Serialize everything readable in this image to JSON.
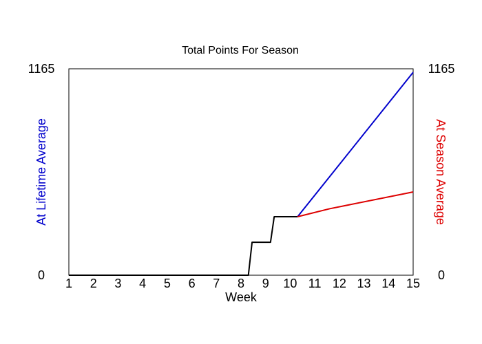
{
  "chart_data": {
    "type": "line",
    "title": "Total Points For Season",
    "xlabel": "Week",
    "ylabel_left": "At Lifetime Average",
    "ylabel_right": "At Season Average",
    "xlim": [
      1,
      15
    ],
    "ylim": [
      0,
      1165
    ],
    "x_ticks": [
      "1",
      "2",
      "3",
      "4",
      "5",
      "6",
      "7",
      "8",
      "9",
      "10",
      "11",
      "12",
      "13",
      "14",
      "15"
    ],
    "y_tick_labels": {
      "min": "0",
      "max": "1165"
    },
    "grid": false,
    "colors": {
      "actual": "#000000",
      "lifetime": "#0000cc",
      "season": "#dd0000"
    },
    "series": [
      {
        "key": "actual",
        "points": [
          [
            1,
            0
          ],
          [
            8.3,
            0
          ],
          [
            8.45,
            186
          ],
          [
            9.2,
            186
          ],
          [
            9.35,
            330
          ],
          [
            10.3,
            330
          ]
        ]
      },
      {
        "key": "lifetime",
        "points": [
          [
            10.3,
            330
          ],
          [
            15,
            1145
          ]
        ]
      },
      {
        "key": "season",
        "points": [
          [
            10.3,
            330
          ],
          [
            11.6,
            375
          ],
          [
            15,
            470
          ]
        ]
      }
    ]
  }
}
